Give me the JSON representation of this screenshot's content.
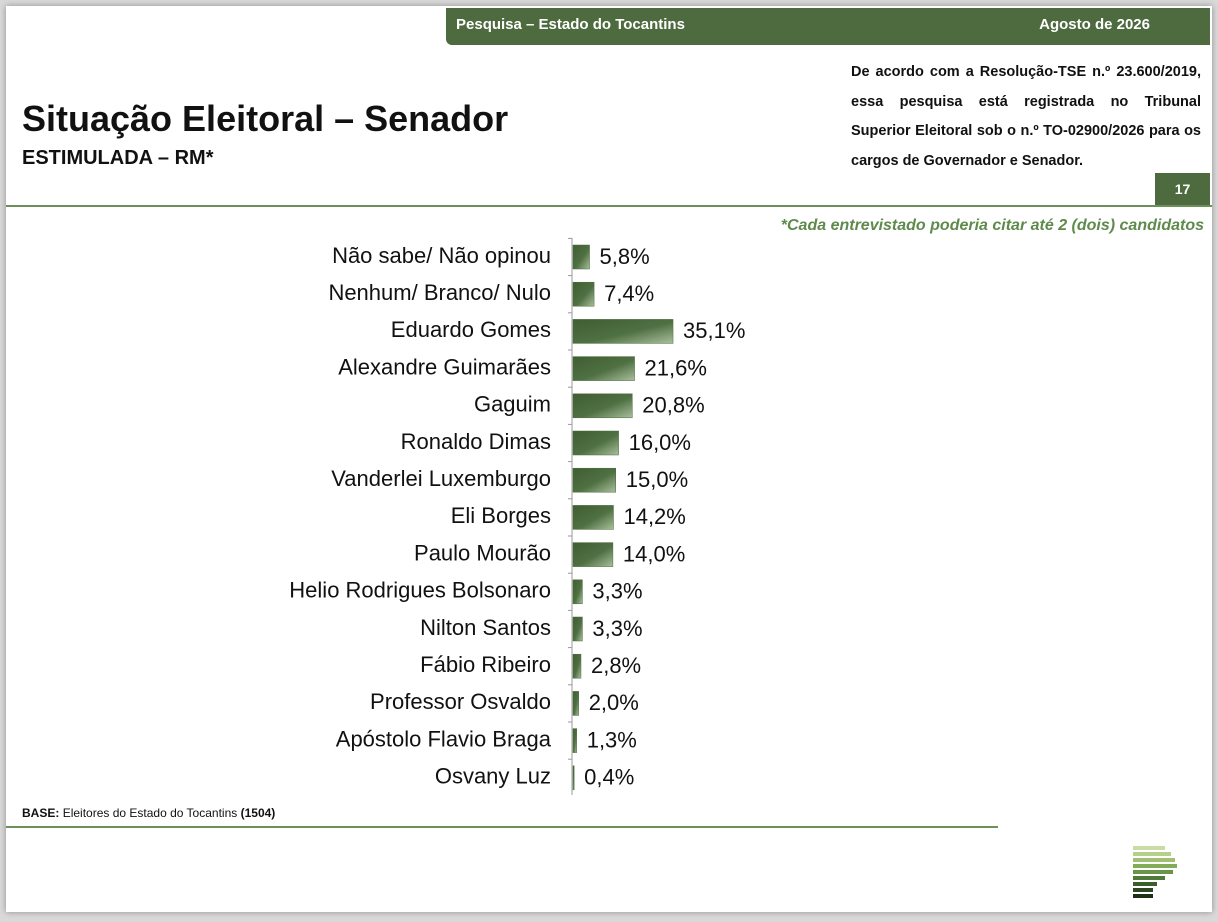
{
  "page": {
    "header": "Pesquisa – Estado do Tocantins",
    "date": "Agosto de 2026",
    "legal": "De acordo com a Resolução-TSE n.º 23.600/2019, essa pesquisa está registrada no Tribunal Superior Eleitoral sob o n.º TO-02900/2026 para os cargos de Governador e Senador.",
    "page_number": "17",
    "base": {
      "label": "BASE:",
      "text": "Eleitores do Estado do Tocantins",
      "n": "(1504)"
    }
  },
  "chart_data": {
    "type": "bar",
    "orientation": "horizontal",
    "title": "Situação Eleitoral – Senador",
    "subtitle": "ESTIMULADA – RM*",
    "note": "*Cada entrevistado poderia citar até 2 (dois) candidatos",
    "categories": [
      "Não sabe/ Não opinou",
      "Nenhum/ Branco/ Nulo",
      "Eduardo Gomes",
      "Alexandre Guimarães",
      "Gaguim",
      "Ronaldo Dimas",
      "Vanderlei Luxemburgo",
      "Eli Borges",
      "Paulo Mourão",
      "Helio Rodrigues Bolsonaro",
      "Nilton Santos",
      "Fábio Ribeiro",
      "Professor Osvaldo",
      "Apóstolo Flavio Braga",
      "Osvany Luz"
    ],
    "values": [
      5.8,
      7.4,
      35.1,
      21.6,
      20.8,
      16.0,
      15.0,
      14.2,
      14.0,
      3.3,
      3.3,
      2.8,
      2.0,
      1.3,
      0.4
    ],
    "value_labels": [
      "5,8%",
      "7,4%",
      "35,1%",
      "21,6%",
      "20,8%",
      "16,0%",
      "15,0%",
      "14,2%",
      "14,0%",
      "3,3%",
      "3,3%",
      "2,8%",
      "2,0%",
      "1,3%",
      "0,4%"
    ],
    "color": "#4a6b3c"
  }
}
